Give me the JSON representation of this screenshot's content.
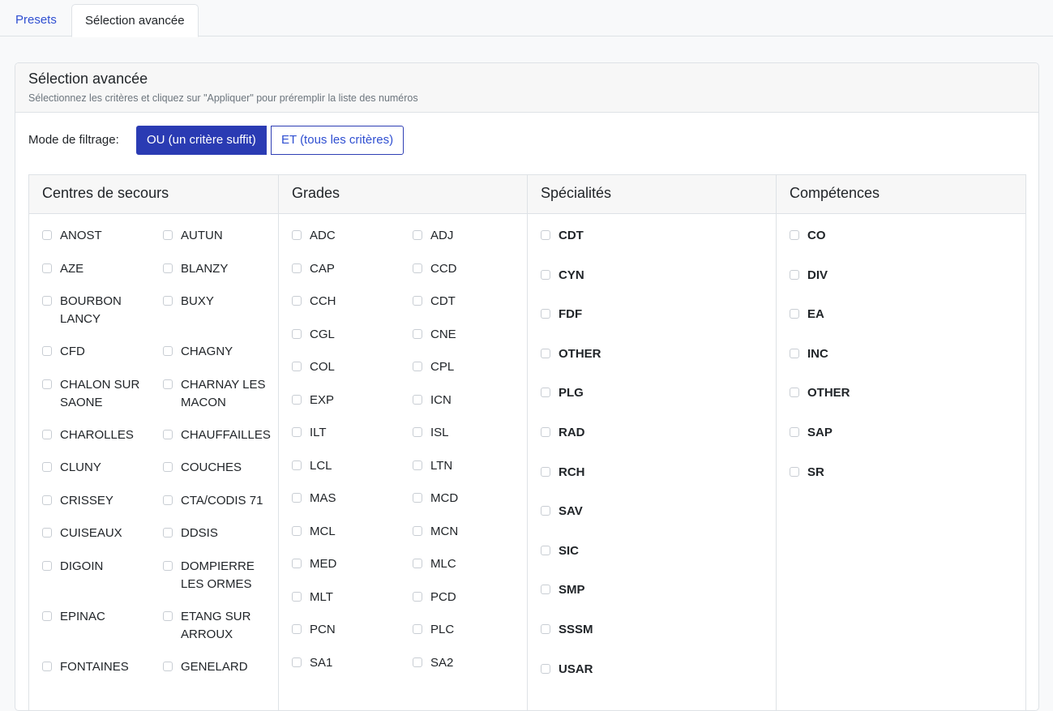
{
  "tabs": [
    {
      "label": "Presets",
      "active": false
    },
    {
      "label": "Sélection avancée",
      "active": true
    }
  ],
  "card": {
    "title": "Sélection avancée",
    "subtitle": "Sélectionnez les critères et cliquez sur \"Appliquer\" pour préremplir la liste des numéros"
  },
  "filter": {
    "label": "Mode de filtrage:",
    "options": [
      {
        "label": "OU (un critère suffit)",
        "selected": true
      },
      {
        "label": "ET (tous les critères)",
        "selected": false
      }
    ]
  },
  "columns": {
    "centres": {
      "title": "Centres de secours",
      "items": [
        "ANOST",
        "AUTUN",
        "AZE",
        "BLANZY",
        "BOURBON LANCY",
        "BUXY",
        "CFD",
        "CHAGNY",
        "CHALON SUR SAONE",
        "CHARNAY LES MACON",
        "CHAROLLES",
        "CHAUFFAILLES",
        "CLUNY",
        "COUCHES",
        "CRISSEY",
        "CTA/CODIS 71",
        "CUISEAUX",
        "DDSIS",
        "DIGOIN",
        "DOMPIERRE LES ORMES",
        "EPINAC",
        "ETANG SUR ARROUX",
        "FONTAINES",
        "GENELARD"
      ]
    },
    "grades": {
      "title": "Grades",
      "items": [
        "ADC",
        "ADJ",
        "CAP",
        "CCD",
        "CCH",
        "CDT",
        "CGL",
        "CNE",
        "COL",
        "CPL",
        "EXP",
        "ICN",
        "ILT",
        "ISL",
        "LCL",
        "LTN",
        "MAS",
        "MCD",
        "MCL",
        "MCN",
        "MED",
        "MLC",
        "MLT",
        "PCD",
        "PCN",
        "PLC",
        "SA1",
        "SA2"
      ]
    },
    "specialites": {
      "title": "Spécialités",
      "items": [
        "CDT",
        "CYN",
        "FDF",
        "OTHER",
        "PLG",
        "RAD",
        "RCH",
        "SAV",
        "SIC",
        "SMP",
        "SSSM",
        "USAR"
      ]
    },
    "competences": {
      "title": "Compétences",
      "items": [
        "CO",
        "DIV",
        "EA",
        "INC",
        "OTHER",
        "SAP",
        "SR"
      ]
    }
  }
}
